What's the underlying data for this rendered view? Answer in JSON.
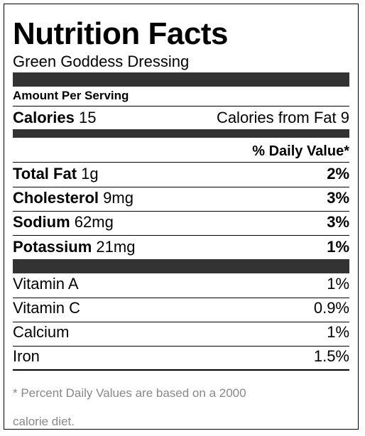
{
  "label": {
    "title": "Nutrition Facts",
    "subtitle": "Green Goddess Dressing",
    "amount_per_serving": "Amount Per Serving",
    "calories_label": "Calories",
    "calories_value": "15",
    "calories_from_fat": "Calories from Fat 9",
    "daily_value_header": "% Daily Value*",
    "nutrients": [
      {
        "name": "Total Fat",
        "amount": "1g",
        "dv": "2%"
      },
      {
        "name": "Cholesterol",
        "amount": "9mg",
        "dv": "3%"
      },
      {
        "name": "Sodium",
        "amount": "62mg",
        "dv": "3%"
      },
      {
        "name": "Potassium",
        "amount": "21mg",
        "dv": "1%"
      }
    ],
    "vitamins": [
      {
        "name": "Vitamin A",
        "dv": "1%"
      },
      {
        "name": "Vitamin C",
        "dv": "0.9%"
      },
      {
        "name": "Calcium",
        "dv": "1%"
      },
      {
        "name": "Iron",
        "dv": "1.5%"
      }
    ],
    "footnote_line1": "* Percent Daily Values are based on a 2000",
    "footnote_line2": "calorie diet."
  }
}
